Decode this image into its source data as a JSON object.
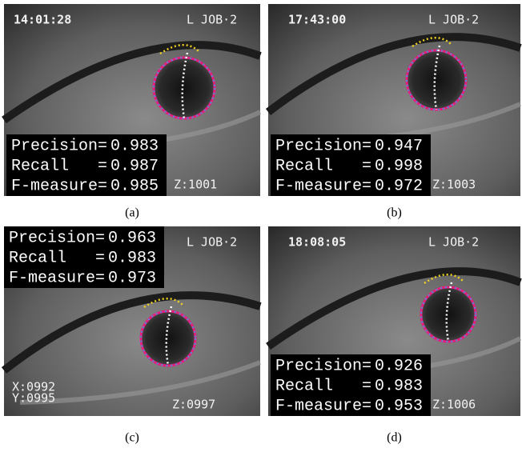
{
  "panels": [
    {
      "caption": "(a)",
      "timestamp": "14:01:28",
      "job": "L JOB·2",
      "z": "Z:1001",
      "precision_label": "Precision=",
      "precision": 0.983,
      "recall_label": "Recall   =",
      "recall": 0.987,
      "fmeasure_label": "F-measure=",
      "fmeasure": 0.985
    },
    {
      "caption": "(b)",
      "timestamp": "17:43:00",
      "job": "L JOB·2",
      "z": "Z:1003",
      "precision_label": "Precision=",
      "precision": 0.947,
      "recall_label": "Recall   =",
      "recall": 0.998,
      "fmeasure_label": "F-measure=",
      "fmeasure": 0.972
    },
    {
      "caption": "(c)",
      "job": "L JOB·2",
      "z": "Z:0997",
      "x_label": "X:0992",
      "y_label": "Y:0995",
      "precision_label": "Precision=",
      "precision": 0.963,
      "recall_label": "Recall   =",
      "recall": 0.983,
      "fmeasure_label": "F-measure=",
      "fmeasure": 0.973
    },
    {
      "caption": "(d)",
      "timestamp": "18:08:05",
      "job": "L JOB·2",
      "z": "Z:1006",
      "precision_label": "Precision=",
      "precision": 0.926,
      "recall_label": "Recall   =",
      "recall": 0.983,
      "fmeasure_label": "F-measure=",
      "fmeasure": 0.953
    }
  ]
}
